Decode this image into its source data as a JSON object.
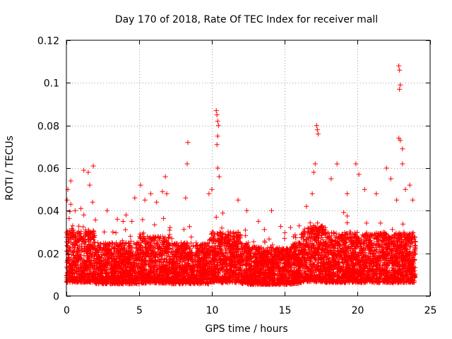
{
  "chart_data": {
    "type": "scatter",
    "title": "Day 170 of 2018, Rate Of TEC Index for receiver mall",
    "xlabel": "GPS time / hours",
    "ylabel": "ROTI / TECUs",
    "xlim": [
      0,
      25
    ],
    "ylim": [
      0,
      0.12
    ],
    "xticks": [
      0,
      5,
      10,
      15,
      20,
      25
    ],
    "xtick_labels": [
      "0",
      "5",
      "10",
      "15",
      "20",
      "25"
    ],
    "yticks": [
      0,
      0.02,
      0.04,
      0.06,
      0.08,
      0.1,
      0.12
    ],
    "ytick_labels": [
      "0",
      "0.02",
      "0.04",
      "0.06",
      "0.08",
      "0.1",
      "0.12"
    ],
    "grid": true,
    "marker": "+",
    "color": "#ff0000",
    "series": [
      {
        "name": "ROTI",
        "points": [
          [
            0.05,
            0.045
          ],
          [
            0.1,
            0.05
          ],
          [
            0.3,
            0.054
          ],
          [
            0.3,
            0.043
          ],
          [
            0.6,
            0.04
          ],
          [
            1.0,
            0.041
          ],
          [
            1.2,
            0.038
          ],
          [
            1.2,
            0.059
          ],
          [
            1.5,
            0.058
          ],
          [
            1.6,
            0.052
          ],
          [
            1.8,
            0.044
          ],
          [
            1.85,
            0.061
          ],
          [
            2.6,
            0.03
          ],
          [
            2.8,
            0.04
          ],
          [
            3.2,
            0.03
          ],
          [
            3.5,
            0.036
          ],
          [
            3.9,
            0.035
          ],
          [
            4.1,
            0.038
          ],
          [
            4.5,
            0.035
          ],
          [
            4.7,
            0.046
          ],
          [
            5.1,
            0.052
          ],
          [
            5.4,
            0.045
          ],
          [
            5.8,
            0.048
          ],
          [
            6.2,
            0.044
          ],
          [
            6.6,
            0.049
          ],
          [
            6.8,
            0.056
          ],
          [
            6.9,
            0.048
          ],
          [
            8.2,
            0.046
          ],
          [
            8.3,
            0.062
          ],
          [
            8.35,
            0.072
          ],
          [
            9.8,
            0.048
          ],
          [
            10.0,
            0.05
          ],
          [
            10.3,
            0.087
          ],
          [
            10.35,
            0.085
          ],
          [
            10.4,
            0.082
          ],
          [
            10.45,
            0.08
          ],
          [
            10.4,
            0.075
          ],
          [
            10.35,
            0.071
          ],
          [
            10.4,
            0.06
          ],
          [
            10.5,
            0.056
          ],
          [
            11.8,
            0.045
          ],
          [
            12.4,
            0.04
          ],
          [
            13.2,
            0.035
          ],
          [
            14.1,
            0.04
          ],
          [
            16.5,
            0.042
          ],
          [
            16.9,
            0.048
          ],
          [
            17.0,
            0.058
          ],
          [
            17.1,
            0.062
          ],
          [
            17.2,
            0.08
          ],
          [
            17.25,
            0.078
          ],
          [
            17.3,
            0.076
          ],
          [
            18.2,
            0.055
          ],
          [
            18.6,
            0.062
          ],
          [
            19.3,
            0.048
          ],
          [
            19.9,
            0.062
          ],
          [
            20.1,
            0.057
          ],
          [
            20.5,
            0.05
          ],
          [
            21.3,
            0.048
          ],
          [
            22.0,
            0.06
          ],
          [
            22.3,
            0.055
          ],
          [
            22.7,
            0.045
          ],
          [
            22.85,
            0.108
          ],
          [
            22.9,
            0.106
          ],
          [
            22.95,
            0.099
          ],
          [
            22.9,
            0.097
          ],
          [
            22.85,
            0.074
          ],
          [
            22.95,
            0.073
          ],
          [
            23.1,
            0.069
          ],
          [
            23.1,
            0.062
          ],
          [
            23.3,
            0.05
          ],
          [
            23.6,
            0.052
          ],
          [
            23.8,
            0.045
          ]
        ]
      }
    ]
  }
}
